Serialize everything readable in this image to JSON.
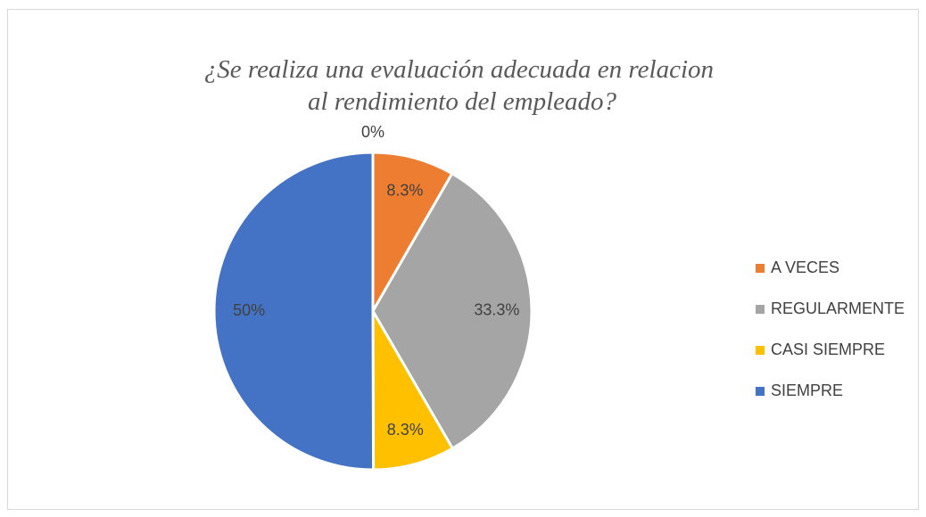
{
  "chart_data": {
    "type": "pie",
    "title": "¿Se realiza una evaluación adecuada en relacion al rendimiento del empleado?",
    "categories": [
      null,
      "A VECES",
      "REGULARMENTE",
      "CASI SIEMPRE",
      "SIEMPRE"
    ],
    "values": [
      0,
      8.3,
      33.3,
      8.3,
      50
    ],
    "value_labels": [
      "0%",
      "8.3%",
      "33.3%",
      "8.3%",
      "50%"
    ],
    "colors": [
      "#5b9bd5",
      "#ed7d31",
      "#a5a5a5",
      "#ffc000",
      "#4472c4"
    ],
    "legend": "right"
  }
}
